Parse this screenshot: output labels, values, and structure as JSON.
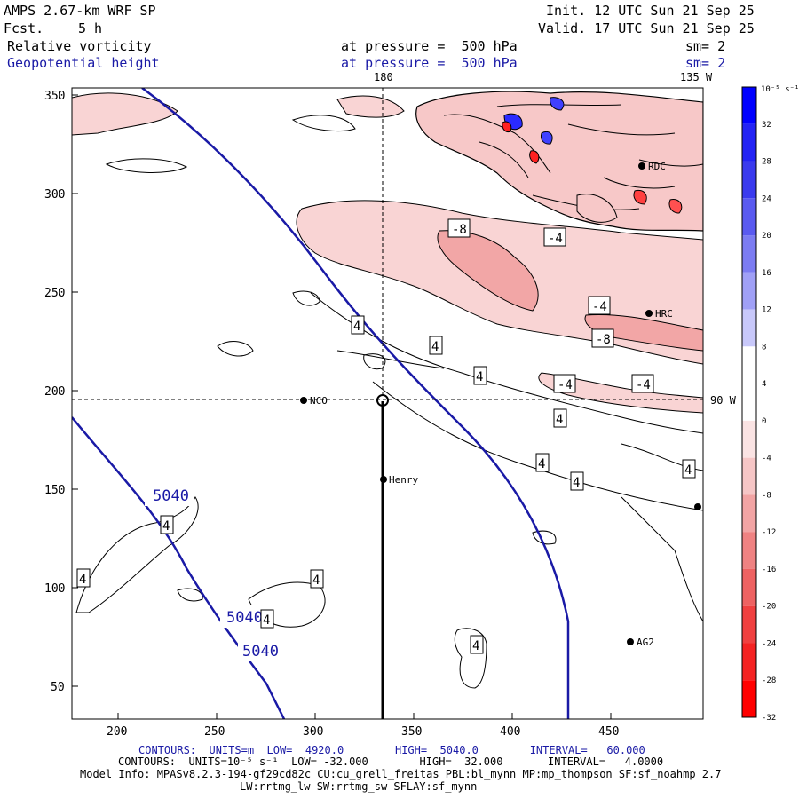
{
  "header": {
    "model": "AMPS 2.67-km WRF SP",
    "fcst_label": "Fcst.",
    "fcst_value": "5 h",
    "init": "Init. 12 UTC Sun 21 Sep 25",
    "valid": "Valid. 17 UTC Sun 21 Sep 25"
  },
  "fields": [
    {
      "name": "Relative vorticity",
      "level": "at pressure =  500 hPa",
      "sm": "sm= 2"
    },
    {
      "name": "Geopotential height",
      "level": "at pressure =  500 hPa",
      "sm": "sm= 2"
    }
  ],
  "map": {
    "lon_180": "180",
    "lon_135w": "135 W",
    "lon_90w": "90 W",
    "x_ticks": [
      "200",
      "250",
      "300",
      "350",
      "400",
      "450"
    ],
    "y_ticks": [
      "350",
      "300",
      "250",
      "200",
      "150",
      "100",
      "50"
    ],
    "height_labels": [
      "5040",
      "5040",
      "5040"
    ],
    "vort_labels": [
      "-8",
      "-4",
      "-4",
      "-8",
      "-4",
      "-4",
      "4",
      "4",
      "4",
      "4",
      "4",
      "4",
      "4",
      "4",
      "4",
      "4",
      "4",
      "4"
    ],
    "stations": [
      "NCO",
      "Henry",
      "HRC",
      "AG2",
      "RDC"
    ]
  },
  "colorbar": {
    "unit": "10⁻⁵ s⁻¹",
    "labels": [
      "32",
      "28",
      "24",
      "20",
      "16",
      "12",
      "8",
      "4",
      "0",
      "-4",
      "-8",
      "-12",
      "-16",
      "-20",
      "-24",
      "-28",
      "-32"
    ],
    "colors": [
      "#0000ff",
      "#2323f4",
      "#3a3aee",
      "#5a5af0",
      "#7c7cf2",
      "#a0a0f6",
      "#c8c8fa",
      "#ffffff",
      "#ffffff",
      "#fae3e3",
      "#f6c6c6",
      "#f2a4a4",
      "#ef8282",
      "#ee6262",
      "#f04040",
      "#f42222",
      "#ff0000"
    ]
  },
  "footer": {
    "contours1": "CONTOURS:  UNITS=m  LOW=  4920.0        HIGH=  5040.0        INTERVAL=   60.000",
    "contours2": "CONTOURS:  UNITS=10⁻⁵ s⁻¹  LOW= -32.000        HIGH=  32.000       INTERVAL=   4.0000",
    "model_info": "Model Info: MPASv8.2.3-194-gf29cd82c CU:cu_grell_freitas PBL:bl_mynn MP:mp_thompson SF:sf_noahmp 2.7",
    "physics": "LW:rrtmg_lw SW:rrtmg_sw SFLAY:sf_mynn"
  },
  "colors": {
    "height_contour": "#1a1aa6",
    "text_blue": "#1a1aa6"
  }
}
